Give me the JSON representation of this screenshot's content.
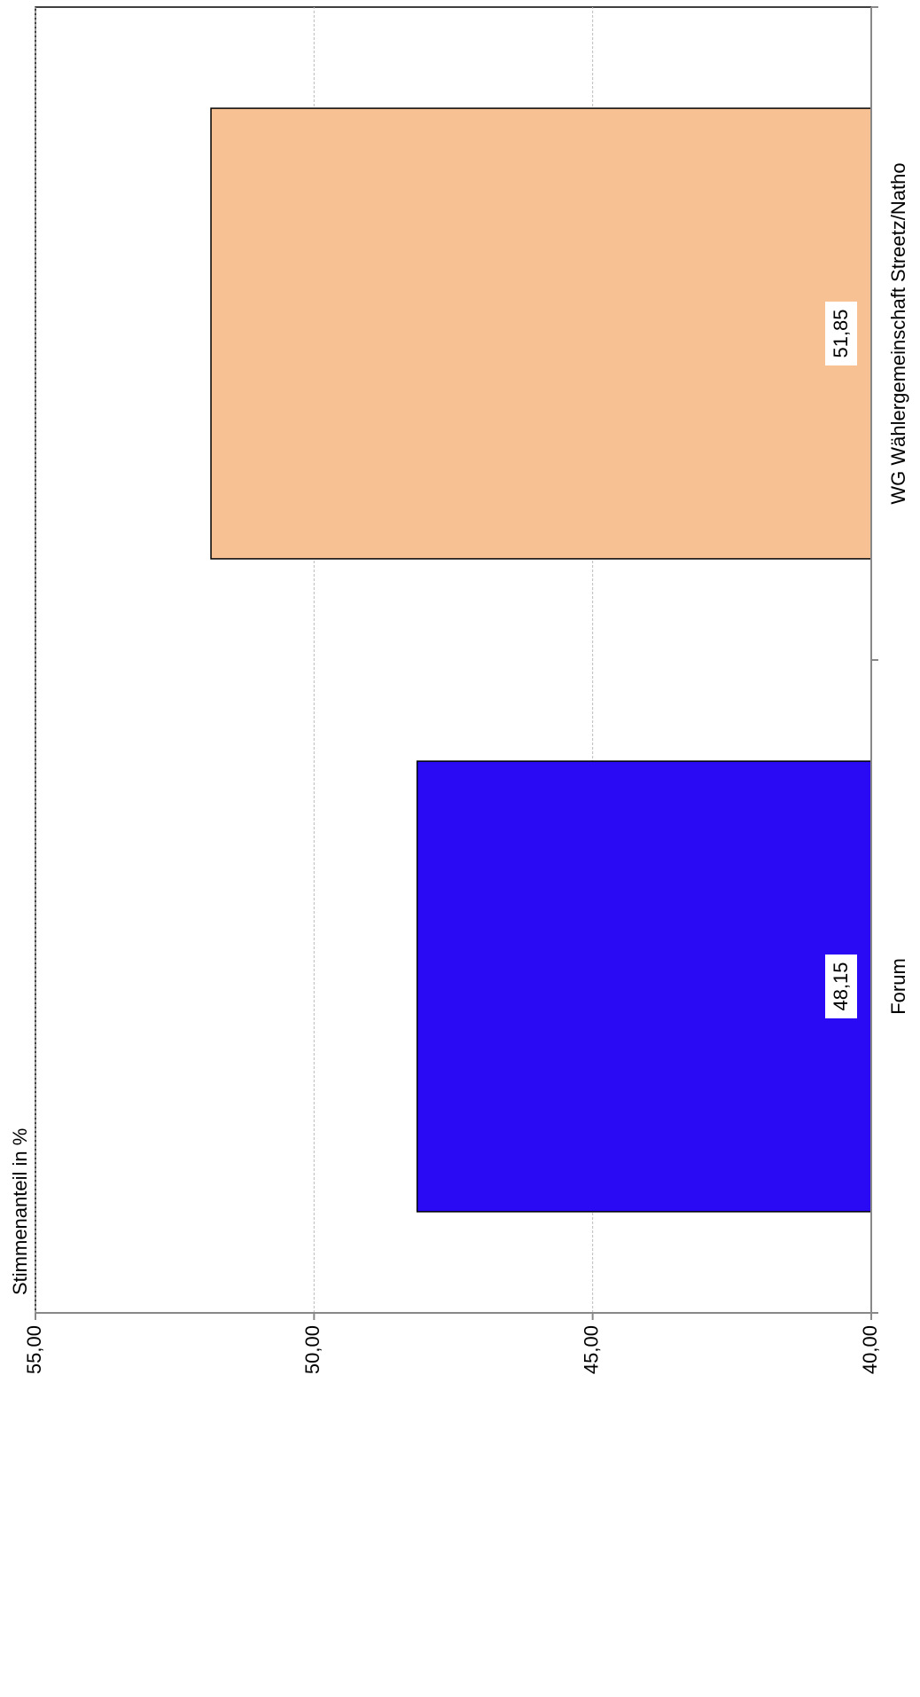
{
  "chart_data": {
    "type": "bar",
    "orientation": "horizontal",
    "axis_label": "Stimmenanteil in %",
    "categories": [
      "Forum",
      "WG Wählergemeinschaft Streetz/Natho"
    ],
    "values": [
      48.15,
      51.85
    ],
    "value_labels": [
      "48,15",
      "51,85"
    ],
    "colors": [
      "#2a0af5",
      "#f8c194"
    ],
    "ylim": [
      40,
      55
    ],
    "yticks": [
      {
        "value": 40,
        "label": "40,00"
      },
      {
        "value": 45,
        "label": "45,00"
      },
      {
        "value": 50,
        "label": "50,00"
      },
      {
        "value": 55,
        "label": "55,00"
      }
    ],
    "grid": true
  }
}
